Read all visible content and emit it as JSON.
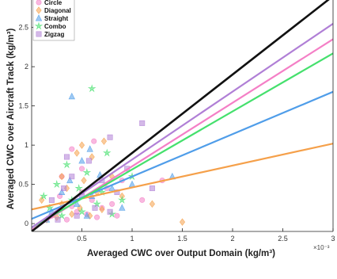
{
  "chart_data": {
    "type": "scatter",
    "xlabel": "Averaged CWC over Output Domain (kg/m³)",
    "ylabel": "Averaged CWC over Aircraft Track (kg/m³)",
    "x_multiplier_label": "×10⁻³",
    "xlim": [
      0,
      0.003
    ],
    "ylim": [
      -0.1,
      2.85
    ],
    "x_ticks": [
      {
        "value": 0.0005,
        "label": "0.5"
      },
      {
        "value": 0.001,
        "label": "1"
      },
      {
        "value": 0.0015,
        "label": "1.5"
      },
      {
        "value": 0.002,
        "label": "2"
      },
      {
        "value": 0.0025,
        "label": "2.5"
      },
      {
        "value": 0.003,
        "label": "3"
      }
    ],
    "y_ticks": [
      {
        "value": 0,
        "label": "0"
      },
      {
        "value": 0.5,
        "label": "0.5"
      },
      {
        "value": 1,
        "label": "1"
      },
      {
        "value": 1.5,
        "label": "1.5"
      },
      {
        "value": 2,
        "label": "2"
      },
      {
        "value": 2.5,
        "label": "2.5"
      }
    ],
    "legend_position": "top-left",
    "series": [
      {
        "name": "Circle",
        "color": "#f47fc6",
        "marker": "circle",
        "fit": {
          "intercept": -0.08,
          "slope": 810
        },
        "points": [
          [
            0.0002,
            0.1
          ],
          [
            0.00028,
            0.35
          ],
          [
            0.00035,
            0.05
          ],
          [
            0.0004,
            0.22
          ],
          [
            0.00045,
            0.15
          ],
          [
            0.0005,
            0.4
          ],
          [
            0.00055,
            0.12
          ],
          [
            0.0006,
            0.3
          ],
          [
            0.00065,
            0.08
          ],
          [
            0.0007,
            0.2
          ],
          [
            0.00075,
            0.45
          ],
          [
            0.0003,
            0.6
          ],
          [
            0.0005,
            0.7
          ],
          [
            0.0008,
            0.25
          ],
          [
            0.00085,
            0.1
          ],
          [
            0.0009,
            0.55
          ],
          [
            0.0011,
            0.3
          ],
          [
            0.0004,
            0.95
          ],
          [
            0.00062,
            1.05
          ],
          [
            0.0013,
            0.55
          ]
        ]
      },
      {
        "name": "Diagonal",
        "color": "#f5a04a",
        "marker": "diamond",
        "fit": {
          "intercept": 0.18,
          "slope": 280
        },
        "points": [
          [
            0.00025,
            0.08
          ],
          [
            0.0003,
            0.25
          ],
          [
            0.00035,
            0.45
          ],
          [
            0.0004,
            0.12
          ],
          [
            0.00048,
            0.2
          ],
          [
            0.00052,
            0.55
          ],
          [
            0.00058,
            0.1
          ],
          [
            0.0006,
            0.85
          ],
          [
            0.00065,
            0.4
          ],
          [
            0.0007,
            0.18
          ],
          [
            0.0008,
            0.6
          ],
          [
            0.0009,
            0.35
          ],
          [
            0.0001,
            0.3
          ],
          [
            0.00015,
            0.05
          ],
          [
            0.0005,
            1.0
          ],
          [
            0.0012,
            0.25
          ],
          [
            0.0015,
            0.02
          ],
          [
            0.0003,
            0.6
          ],
          [
            0.00072,
            1.05
          ],
          [
            0.00045,
            0.9
          ]
        ]
      },
      {
        "name": "Straight",
        "color": "#4f9de9",
        "marker": "triangle",
        "fit": {
          "intercept": 0.06,
          "slope": 540
        },
        "points": [
          [
            0.0002,
            0.15
          ],
          [
            0.0003,
            0.4
          ],
          [
            0.00038,
            0.55
          ],
          [
            0.0004,
            1.62
          ],
          [
            0.00045,
            0.25
          ],
          [
            0.0005,
            0.8
          ],
          [
            0.00055,
            0.1
          ],
          [
            0.0006,
            0.35
          ],
          [
            0.00068,
            0.62
          ],
          [
            0.0008,
            0.45
          ],
          [
            0.0009,
            0.2
          ],
          [
            0.001,
            0.5
          ],
          [
            0.0014,
            0.6
          ],
          [
            0.00015,
            0.05
          ],
          [
            0.00058,
            0.95
          ]
        ]
      },
      {
        "name": "Combo",
        "color": "#45e06d",
        "marker": "star",
        "fit": {
          "intercept": -0.05,
          "slope": 740
        },
        "points": [
          [
            0.00018,
            0.2
          ],
          [
            0.00025,
            0.5
          ],
          [
            0.0003,
            0.1
          ],
          [
            0.00035,
            0.75
          ],
          [
            0.0004,
            0.3
          ],
          [
            0.00047,
            0.45
          ],
          [
            0.0005,
            0.15
          ],
          [
            0.00055,
            0.65
          ],
          [
            0.0006,
            1.72
          ],
          [
            0.00065,
            0.25
          ],
          [
            0.0007,
            0.4
          ],
          [
            0.00075,
            0.9
          ],
          [
            0.0008,
            0.12
          ],
          [
            0.0009,
            0.3
          ],
          [
            0.001,
            0.6
          ],
          [
            0.00012,
            0.35
          ]
        ]
      },
      {
        "name": "Zigzag",
        "color": "#b07fd6",
        "marker": "square",
        "fit": {
          "intercept": -0.05,
          "slope": 866
        },
        "points": [
          [
            0.0002,
            0.3
          ],
          [
            0.00026,
            0.05
          ],
          [
            0.00032,
            0.45
          ],
          [
            0.0004,
            0.6
          ],
          [
            0.00045,
            0.1
          ],
          [
            0.0005,
            0.35
          ],
          [
            0.00057,
            0.8
          ],
          [
            0.00063,
            0.2
          ],
          [
            0.0007,
            0.55
          ],
          [
            0.00078,
            0.15
          ],
          [
            0.00085,
            0.4
          ],
          [
            0.00095,
            0.7
          ],
          [
            0.0012,
            0.45
          ],
          [
            0.0011,
            1.28
          ],
          [
            0.00078,
            1.1
          ],
          [
            0.00035,
            0.85
          ]
        ]
      }
    ],
    "reference_line": {
      "name": "1:1",
      "color": "#111111",
      "intercept": -0.1,
      "slope": 1000
    }
  }
}
